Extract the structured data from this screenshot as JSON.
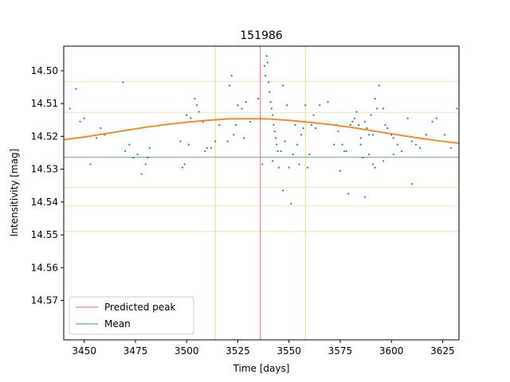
{
  "chart_data": {
    "type": "scatter",
    "title": "151986",
    "xlabel": "Time [days]",
    "ylabel": "Intensitivity [mag]",
    "xlim": [
      3440,
      3633
    ],
    "ylim": [
      14.582,
      14.4925
    ],
    "y_inverted": true,
    "grid": false,
    "legend_placement": "lower-left",
    "x_ticks": [
      3450,
      3475,
      3500,
      3525,
      3550,
      3575,
      3600,
      3625
    ],
    "y_ticks": [
      14.5,
      14.51,
      14.52,
      14.53,
      14.54,
      14.55,
      14.56,
      14.57
    ],
    "colors": {
      "points": "#1f77b4",
      "fit": "#ff7f0e",
      "peak": "#e8626a",
      "mean": "#4a9a4a",
      "band": "#e6d680"
    },
    "series": [
      {
        "name": "",
        "kind": "scatter",
        "points": [
          [
            3443,
            14.5115
          ],
          [
            3446,
            14.5055
          ],
          [
            3448,
            14.5155
          ],
          [
            3450,
            14.5145
          ],
          [
            3453,
            14.5285
          ],
          [
            3456,
            14.5205
          ],
          [
            3458,
            14.5175
          ],
          [
            3460,
            14.5195
          ],
          [
            3469,
            14.5035
          ],
          [
            3470,
            14.5245
          ],
          [
            3472,
            14.5225
          ],
          [
            3474,
            14.5265
          ],
          [
            3476,
            14.5255
          ],
          [
            3478,
            14.5315
          ],
          [
            3480,
            14.5285
          ],
          [
            3481,
            14.5265
          ],
          [
            3482,
            14.5235
          ],
          [
            3497,
            14.5215
          ],
          [
            3498,
            14.5295
          ],
          [
            3499,
            14.5285
          ],
          [
            3500,
            14.5135
          ],
          [
            3501,
            14.5225
          ],
          [
            3502,
            14.5145
          ],
          [
            3504,
            14.5085
          ],
          [
            3505,
            14.5105
          ],
          [
            3506,
            14.5125
          ],
          [
            3508,
            14.5155
          ],
          [
            3509,
            14.5245
          ],
          [
            3510,
            14.5235
          ],
          [
            3512,
            14.5235
          ],
          [
            3514,
            14.5215
          ],
          [
            3516,
            14.5165
          ],
          [
            3520,
            14.5215
          ],
          [
            3521,
            14.5045
          ],
          [
            3522,
            14.5015
          ],
          [
            3523,
            14.5195
          ],
          [
            3524,
            14.5165
          ],
          [
            3525,
            14.5105
          ],
          [
            3527,
            14.5115
          ],
          [
            3528,
            14.5205
          ],
          [
            3529,
            14.5095
          ],
          [
            3531,
            14.5155
          ],
          [
            3535,
            14.5085
          ],
          [
            3536,
            14.5145
          ],
          [
            3537,
            14.5285
          ],
          [
            3538,
            14.4985
          ],
          [
            3538.5,
            14.5015
          ],
          [
            3539,
            14.4955
          ],
          [
            3539.5,
            14.4975
          ],
          [
            3540,
            14.5035
          ],
          [
            3540.5,
            14.5065
          ],
          [
            3541,
            14.5095
          ],
          [
            3541.5,
            14.5115
          ],
          [
            3542,
            14.5135
          ],
          [
            3542.5,
            14.5165
          ],
          [
            3543,
            14.5185
          ],
          [
            3543.5,
            14.5205
          ],
          [
            3544,
            14.5225
          ],
          [
            3544.5,
            14.5245
          ],
          [
            3545,
            14.5295
          ],
          [
            3546,
            14.5245
          ],
          [
            3547,
            14.5045
          ],
          [
            3548,
            14.5215
          ],
          [
            3549,
            14.5105
          ],
          [
            3550,
            14.5295
          ],
          [
            3551,
            14.5405
          ],
          [
            3552,
            14.5255
          ],
          [
            3553,
            14.5165
          ],
          [
            3554,
            14.5225
          ],
          [
            3555,
            14.5285
          ],
          [
            3556,
            14.5195
          ],
          [
            3557,
            14.5175
          ],
          [
            3558,
            14.5105
          ],
          [
            3559,
            14.5295
          ],
          [
            3560,
            14.5255
          ],
          [
            3561,
            14.5165
          ],
          [
            3562,
            14.5135
          ],
          [
            3563,
            14.5175
          ],
          [
            3565,
            14.5105
          ],
          [
            3569,
            14.5095
          ],
          [
            3572,
            14.5225
          ],
          [
            3573,
            14.5165
          ],
          [
            3574,
            14.5185
          ],
          [
            3575,
            14.5305
          ],
          [
            3576,
            14.5225
          ],
          [
            3577,
            14.5245
          ],
          [
            3578,
            14.5245
          ],
          [
            3579,
            14.5375
          ],
          [
            3580,
            14.5165
          ],
          [
            3581,
            14.5155
          ],
          [
            3582,
            14.5145
          ],
          [
            3583,
            14.5125
          ],
          [
            3584,
            14.5165
          ],
          [
            3585,
            14.5225
          ],
          [
            3586,
            14.5265
          ],
          [
            3587,
            14.5155
          ],
          [
            3588,
            14.5175
          ],
          [
            3589,
            14.5195
          ],
          [
            3590,
            14.5135
          ],
          [
            3591,
            14.5195
          ],
          [
            3592,
            14.5085
          ],
          [
            3593,
            14.5115
          ],
          [
            3594,
            14.5045
          ],
          [
            3596,
            14.5115
          ],
          [
            3597,
            14.5165
          ],
          [
            3598,
            14.5175
          ],
          [
            3600,
            14.5195
          ],
          [
            3601,
            14.5205
          ],
          [
            3603,
            14.5225
          ],
          [
            3605,
            14.5245
          ],
          [
            3608,
            14.5145
          ],
          [
            3610,
            14.5215
          ],
          [
            3612,
            14.5225
          ],
          [
            3614,
            14.5235
          ],
          [
            3617,
            14.5195
          ],
          [
            3620,
            14.5155
          ],
          [
            3622,
            14.5145
          ],
          [
            3626,
            14.5195
          ],
          [
            3629,
            14.5235
          ],
          [
            3632,
            14.5115
          ],
          [
            3547,
            14.5365
          ],
          [
            3587,
            14.5385
          ],
          [
            3589,
            14.5255
          ],
          [
            3591,
            14.5285
          ],
          [
            3592,
            14.5295
          ],
          [
            3596,
            14.5275
          ],
          [
            3601,
            14.5255
          ],
          [
            3610,
            14.5345
          ],
          [
            3585,
            14.5205
          ],
          [
            3542,
            14.5275
          ]
        ]
      },
      {
        "name": "",
        "kind": "fit",
        "x": [
          3440,
          3450,
          3460,
          3470,
          3480,
          3490,
          3500,
          3510,
          3520,
          3530,
          3540,
          3550,
          3560,
          3570,
          3580,
          3590,
          3600,
          3610,
          3620,
          3633
        ],
        "y": [
          14.521,
          14.5202,
          14.5192,
          14.5182,
          14.5172,
          14.5164,
          14.5157,
          14.5151,
          14.5147,
          14.5146,
          14.5147,
          14.5151,
          14.5157,
          14.5164,
          14.5172,
          14.5182,
          14.5192,
          14.5202,
          14.5211,
          14.5221
        ]
      }
    ],
    "predicted_peak_x": 3536,
    "band_x": [
      3514,
      3558
    ],
    "mean_y": 14.5263,
    "band_y": [
      14.5033,
      14.5127,
      14.5355,
      14.5412,
      14.549
    ],
    "legend": [
      {
        "label": "Predicted peak",
        "color_key": "peak"
      },
      {
        "label": "Mean",
        "color_key": "mean"
      }
    ]
  }
}
